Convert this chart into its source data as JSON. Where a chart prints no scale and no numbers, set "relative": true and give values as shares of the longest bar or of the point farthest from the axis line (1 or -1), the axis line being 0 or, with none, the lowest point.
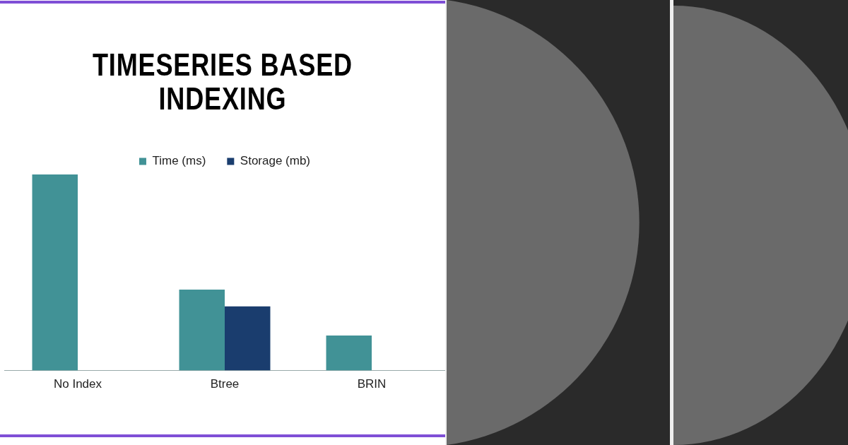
{
  "chart_data": {
    "type": "bar",
    "title": "TIMESERIES BASED INDEXING",
    "categories": [
      "No Index",
      "Btree",
      "BRIN"
    ],
    "series": [
      {
        "name": "Time (ms)",
        "color": "#419296",
        "values": [
          1,
          0.413,
          0.179
        ]
      },
      {
        "name": "Storage (mb)",
        "color": "#1a3d6e",
        "values": [
          null,
          0.327,
          null
        ]
      }
    ],
    "relative": true,
    "legend": "top"
  }
}
